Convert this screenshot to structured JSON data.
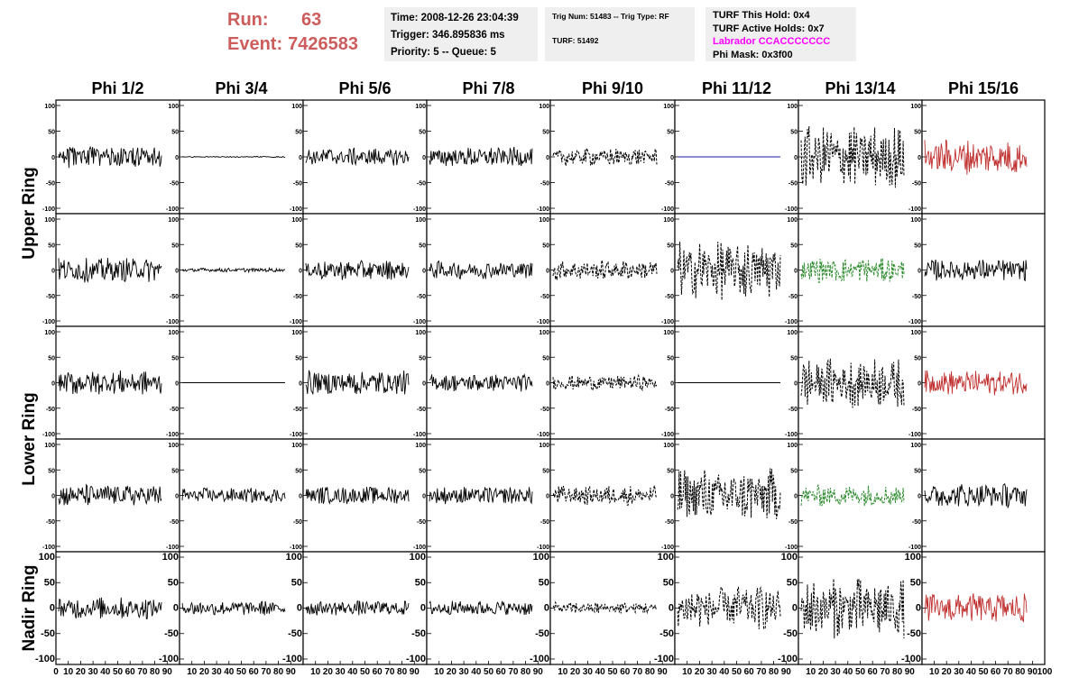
{
  "header": {
    "run_label": "Run:",
    "run_value": "63",
    "event_label": "Event:",
    "event_value": "7426583",
    "time_line": "Time: 2008-12-26 23:04:39",
    "trigger_line": "Trigger: 346.895836 ms",
    "priority_line": "Priority: 5 -- Queue: 5",
    "trig_num_line": "Trig Num: 51483 -- Trig Type: RF",
    "turf_line": "TURF: 51492",
    "turf_this_hold": "TURF This Hold: 0x4",
    "turf_active_holds": "TURF Active Holds: 0x7",
    "labrador": "Labrador CCACCCCCCC",
    "phi_mask": "Phi Mask: 0x3f00"
  },
  "colors": {
    "run_text": "#cd5c5c",
    "labrador_text": "#ff00ff",
    "trace_black": "#000000",
    "trace_red": "#c0302f",
    "trace_green": "#2e8b2e",
    "trace_blue": "#1a1aa8"
  },
  "chart_data": {
    "type": "line",
    "columns": [
      "Phi 1/2",
      "Phi 3/4",
      "Phi 5/6",
      "Phi 7/8",
      "Phi 9/10",
      "Phi 11/12",
      "Phi 13/14",
      "Phi 15/16"
    ],
    "rows": [
      "Upper Ring",
      "Upper Ring",
      "Lower Ring",
      "Lower Ring",
      "Nadir Ring"
    ],
    "row_labels": [
      {
        "text": "Upper Ring",
        "spans_rows": [
          0,
          1
        ]
      },
      {
        "text": "Lower Ring",
        "spans_rows": [
          2,
          3
        ]
      },
      {
        "text": "Nadir Ring",
        "spans_rows": [
          4
        ]
      }
    ],
    "ylim": [
      -100,
      100
    ],
    "yticks": [
      "100",
      "50",
      "0",
      "-50",
      "-100"
    ],
    "xlim": [
      0,
      100
    ],
    "xticks": [
      "0",
      "10",
      "20",
      "30",
      "40",
      "50",
      "60",
      "70",
      "80",
      "90",
      "100"
    ],
    "panels": [
      [
        {
          "style": "solid",
          "color": "black",
          "amplitude": 22
        },
        {
          "style": "solid",
          "color": "black",
          "amplitude": 1
        },
        {
          "style": "solid",
          "color": "black",
          "amplitude": 18
        },
        {
          "style": "solid",
          "color": "black",
          "amplitude": 20
        },
        {
          "style": "dashed",
          "color": "black",
          "amplitude": 18
        },
        {
          "style": "solid",
          "color": "blue",
          "amplitude": 0
        },
        {
          "style": "dashed",
          "color": "black",
          "amplitude": 65
        },
        {
          "style": "solid",
          "color": "red",
          "amplitude": 35
        }
      ],
      [
        {
          "style": "solid",
          "color": "black",
          "amplitude": 25
        },
        {
          "style": "solid",
          "color": "black",
          "amplitude": 4
        },
        {
          "style": "solid",
          "color": "black",
          "amplitude": 20
        },
        {
          "style": "solid",
          "color": "black",
          "amplitude": 18
        },
        {
          "style": "dashed",
          "color": "black",
          "amplitude": 20
        },
        {
          "style": "dashed",
          "color": "black",
          "amplitude": 60
        },
        {
          "style": "dashed",
          "color": "green",
          "amplitude": 25
        },
        {
          "style": "solid",
          "color": "black",
          "amplitude": 22
        }
      ],
      [
        {
          "style": "solid",
          "color": "black",
          "amplitude": 25
        },
        {
          "style": "solid",
          "color": "black",
          "amplitude": 0
        },
        {
          "style": "solid",
          "color": "black",
          "amplitude": 25
        },
        {
          "style": "solid",
          "color": "black",
          "amplitude": 18
        },
        {
          "style": "dashed",
          "color": "black",
          "amplitude": 15
        },
        {
          "style": "solid",
          "color": "black",
          "amplitude": 0
        },
        {
          "style": "dashed",
          "color": "black",
          "amplitude": 50
        },
        {
          "style": "solid",
          "color": "red",
          "amplitude": 25
        }
      ],
      [
        {
          "style": "solid",
          "color": "black",
          "amplitude": 22
        },
        {
          "style": "solid",
          "color": "black",
          "amplitude": 15
        },
        {
          "style": "solid",
          "color": "black",
          "amplitude": 18
        },
        {
          "style": "solid",
          "color": "black",
          "amplitude": 18
        },
        {
          "style": "dashed",
          "color": "black",
          "amplitude": 20
        },
        {
          "style": "dashed",
          "color": "black",
          "amplitude": 55
        },
        {
          "style": "dashed",
          "color": "green",
          "amplitude": 22
        },
        {
          "style": "solid",
          "color": "black",
          "amplitude": 25
        }
      ],
      [
        {
          "style": "solid",
          "color": "black",
          "amplitude": 22
        },
        {
          "style": "solid",
          "color": "black",
          "amplitude": 15
        },
        {
          "style": "solid",
          "color": "black",
          "amplitude": 15
        },
        {
          "style": "solid",
          "color": "black",
          "amplitude": 15
        },
        {
          "style": "dashed",
          "color": "black",
          "amplitude": 12
        },
        {
          "style": "dashed",
          "color": "black",
          "amplitude": 45
        },
        {
          "style": "dashed",
          "color": "black",
          "amplitude": 60
        },
        {
          "style": "solid",
          "color": "red",
          "amplitude": 30
        }
      ]
    ]
  }
}
